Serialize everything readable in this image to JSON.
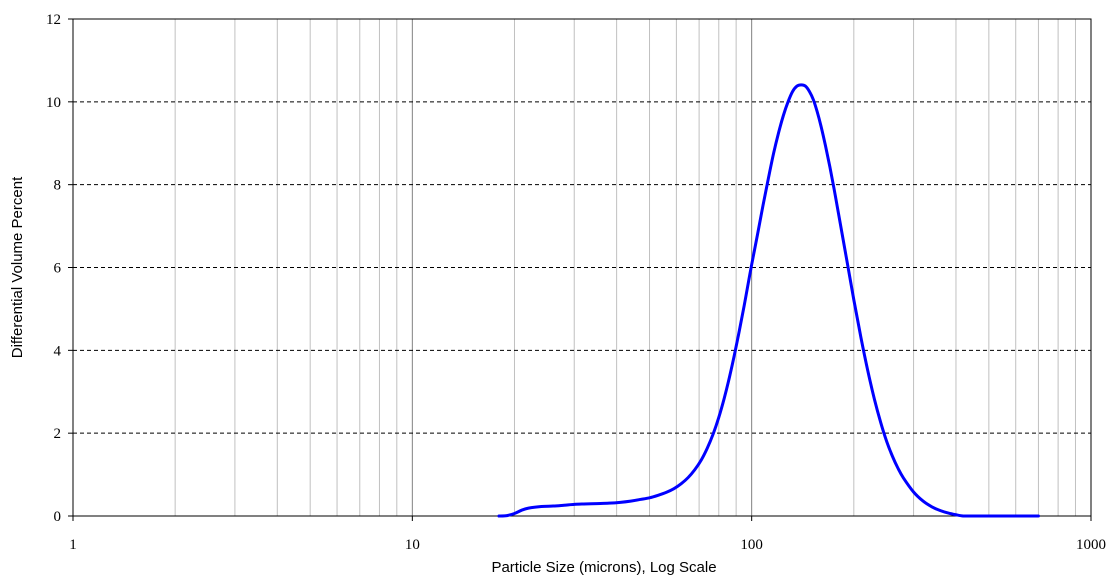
{
  "chart_data": {
    "type": "line",
    "title": "",
    "xlabel": "Particle Size (microns), Log Scale",
    "ylabel": "Differential Volume Percent",
    "x_scale": "log",
    "xlim": [
      1,
      1000
    ],
    "ylim": [
      0,
      12
    ],
    "x_ticks": [
      1,
      10,
      100,
      1000
    ],
    "x_tick_labels": [
      "1",
      "10",
      "100",
      "1000"
    ],
    "y_ticks": [
      0,
      2,
      4,
      6,
      8,
      10,
      12
    ],
    "y_tick_labels": [
      "0",
      "2",
      "4",
      "6",
      "8",
      "10",
      "12"
    ],
    "grid": {
      "x_major": true,
      "x_minor": true,
      "y_major": true,
      "y_style": "dashed"
    },
    "colors": {
      "series": "#0000ff",
      "grid_x": "#c0c0c0",
      "grid_y": "#000000",
      "axes": "#000000"
    },
    "series": [
      {
        "x": [
          18,
          19,
          20,
          21,
          22,
          24,
          26,
          28,
          30,
          32,
          35,
          38,
          41,
          44,
          47,
          50,
          53,
          56,
          59,
          62,
          65,
          68,
          71,
          74,
          77,
          80,
          83,
          86,
          89,
          92,
          95,
          98,
          100,
          104,
          108,
          112,
          116,
          120,
          124,
          128,
          132,
          136,
          140,
          144,
          148,
          152,
          156,
          160,
          165,
          170,
          175,
          180,
          190,
          200,
          210,
          220,
          230,
          240,
          250,
          260,
          270,
          280,
          300,
          320,
          340,
          360,
          380,
          400,
          420,
          440,
          460,
          500,
          550,
          600,
          650,
          700
        ],
        "y": [
          0,
          0.01,
          0.06,
          0.14,
          0.19,
          0.23,
          0.24,
          0.26,
          0.28,
          0.29,
          0.3,
          0.31,
          0.33,
          0.36,
          0.4,
          0.44,
          0.5,
          0.57,
          0.66,
          0.78,
          0.93,
          1.12,
          1.35,
          1.64,
          1.98,
          2.38,
          2.84,
          3.35,
          3.9,
          4.48,
          5.07,
          5.68,
          6.07,
          6.79,
          7.5,
          8.15,
          8.75,
          9.25,
          9.67,
          10.0,
          10.25,
          10.38,
          10.41,
          10.38,
          10.25,
          10.05,
          9.76,
          9.42,
          8.94,
          8.43,
          7.89,
          7.33,
          6.25,
          5.22,
          4.3,
          3.5,
          2.82,
          2.26,
          1.8,
          1.44,
          1.15,
          0.92,
          0.58,
          0.36,
          0.22,
          0.13,
          0.07,
          0.03,
          0.0,
          0.0,
          0.0,
          0.0,
          0.0,
          0.0,
          0.0,
          0.0
        ]
      }
    ]
  }
}
